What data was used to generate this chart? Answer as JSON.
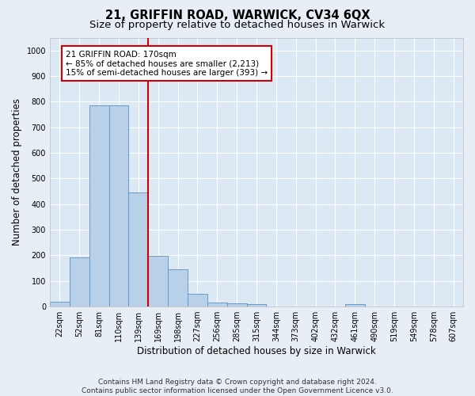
{
  "title": "21, GRIFFIN ROAD, WARWICK, CV34 6QX",
  "subtitle": "Size of property relative to detached houses in Warwick",
  "xlabel": "Distribution of detached houses by size in Warwick",
  "ylabel": "Number of detached properties",
  "categories": [
    "22sqm",
    "52sqm",
    "81sqm",
    "110sqm",
    "139sqm",
    "169sqm",
    "198sqm",
    "227sqm",
    "256sqm",
    "285sqm",
    "315sqm",
    "344sqm",
    "373sqm",
    "402sqm",
    "432sqm",
    "461sqm",
    "490sqm",
    "519sqm",
    "549sqm",
    "578sqm",
    "607sqm"
  ],
  "values": [
    18,
    192,
    787,
    787,
    445,
    197,
    145,
    50,
    17,
    13,
    10,
    0,
    0,
    0,
    0,
    8,
    0,
    0,
    0,
    0,
    0
  ],
  "bar_color": "#b8d0e8",
  "bar_edge_color": "#6699cc",
  "property_line_x": 4.5,
  "property_line_color": "#cc0000",
  "annotation_line1": "21 GRIFFIN ROAD: 170sqm",
  "annotation_line2": "← 85% of detached houses are smaller (2,213)",
  "annotation_line3": "15% of semi-detached houses are larger (393) →",
  "annotation_box_color": "#cc0000",
  "ylim": [
    0,
    1050
  ],
  "yticks": [
    0,
    100,
    200,
    300,
    400,
    500,
    600,
    700,
    800,
    900,
    1000
  ],
  "footer_line1": "Contains HM Land Registry data © Crown copyright and database right 2024.",
  "footer_line2": "Contains public sector information licensed under the Open Government Licence v3.0.",
  "background_color": "#e8eef5",
  "plot_bg_color": "#dce8f4",
  "grid_color": "#ffffff",
  "title_fontsize": 10.5,
  "subtitle_fontsize": 9.5,
  "axis_label_fontsize": 8.5,
  "tick_fontsize": 7,
  "footer_fontsize": 6.5
}
